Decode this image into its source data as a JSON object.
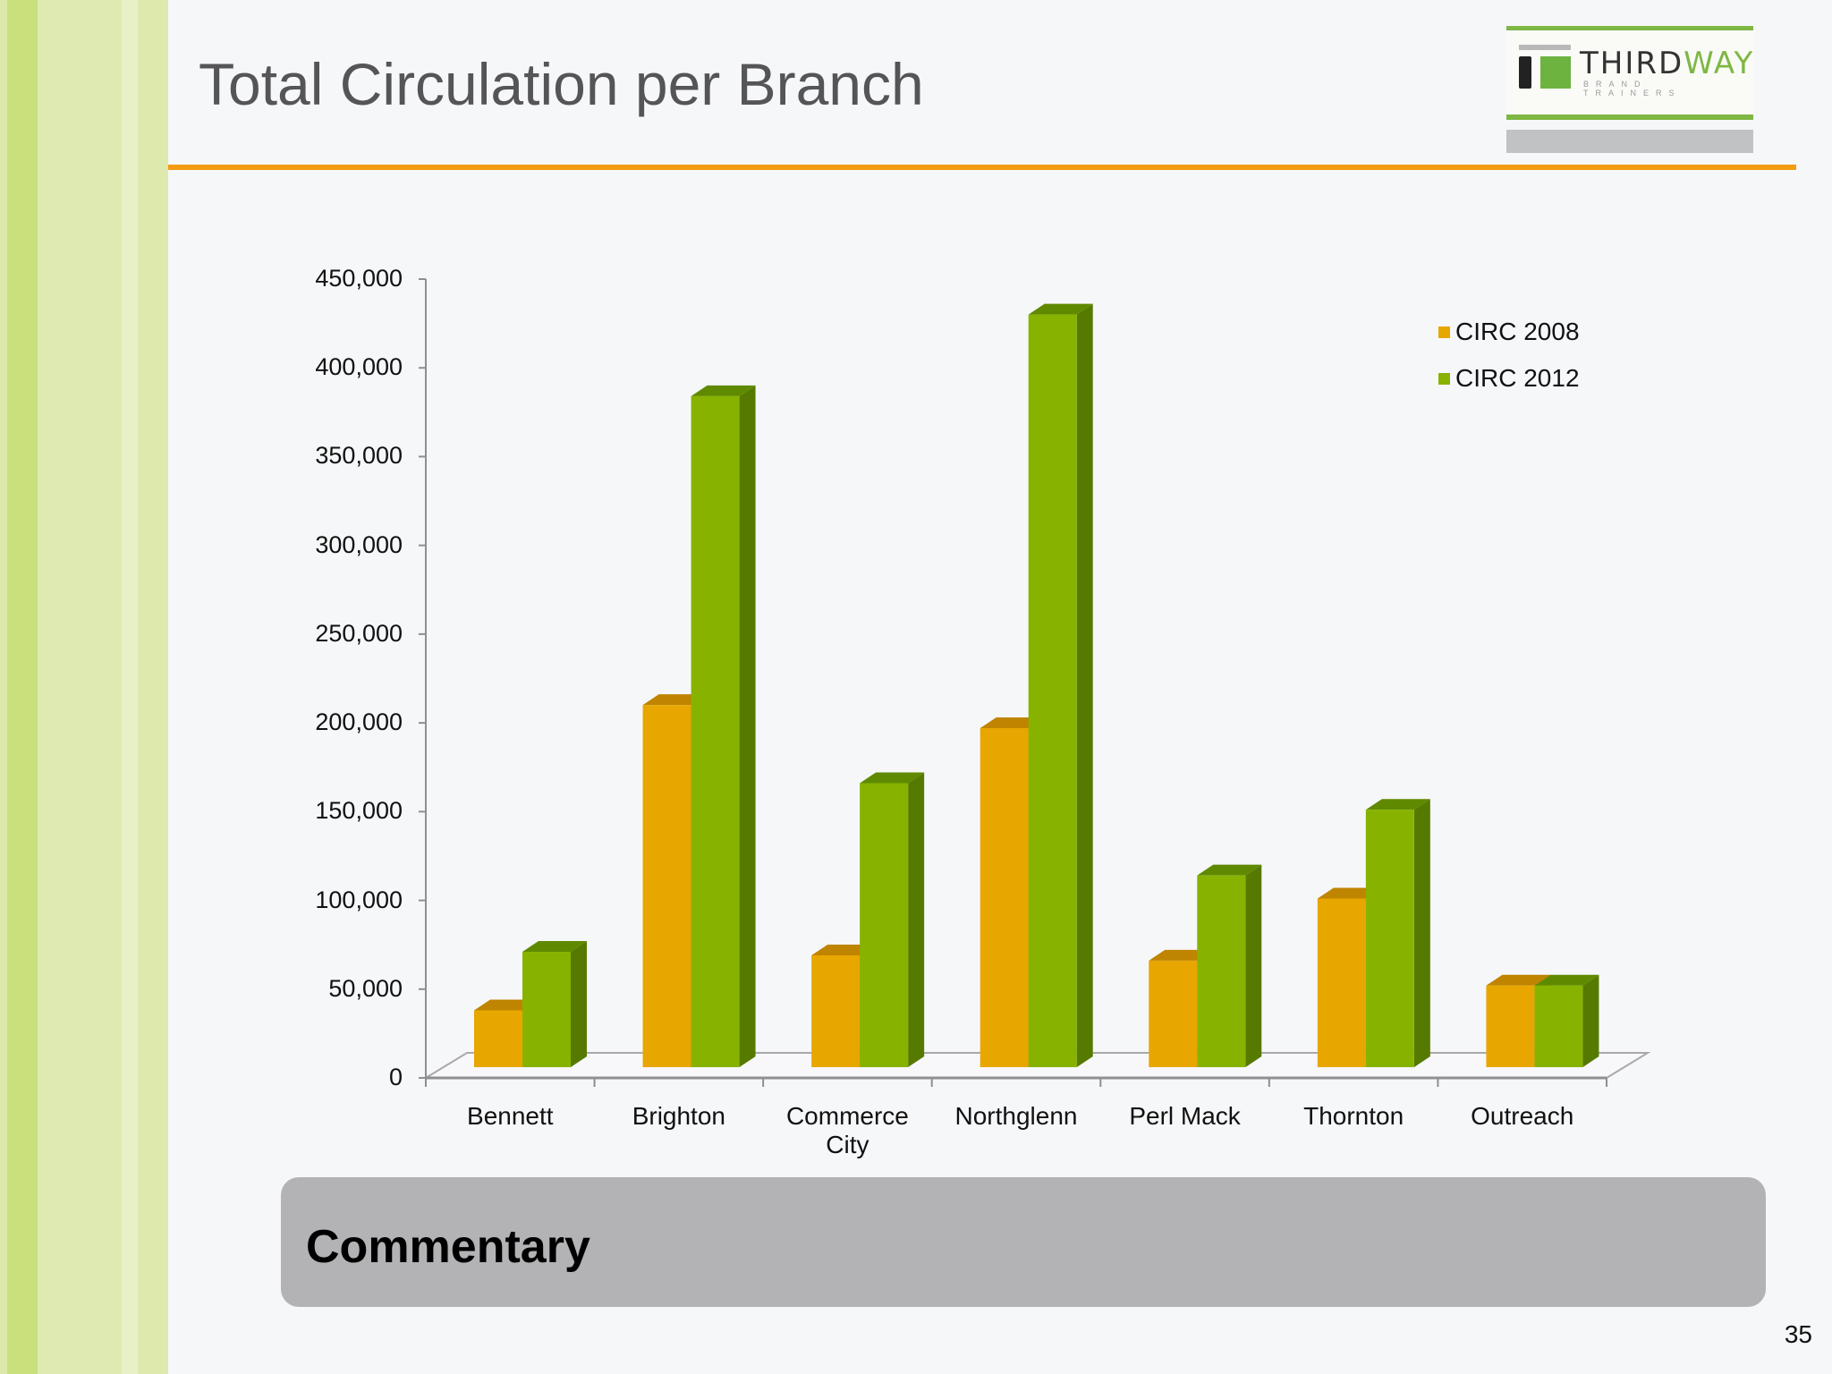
{
  "slide": {
    "title": "Total Circulation per Branch",
    "page_number": "35",
    "commentary_label": "Commentary"
  },
  "logo": {
    "word_main": "THIRD",
    "word_accent": "WAY",
    "tagline": "BRAND TRAINERS"
  },
  "colors": {
    "accent_rule": "#f39c12",
    "series_2008": "#e8a600",
    "series_2012": "#87b300",
    "sidebar_green": "#c9e07c",
    "commentary_bg": "#b3b2b5"
  },
  "chart_data": {
    "type": "bar",
    "style": "3d-clustered-column",
    "title": "",
    "xlabel": "",
    "ylabel": "",
    "categories": [
      "Bennett",
      "Brighton",
      "Commerce City",
      "Northglenn",
      "Perl Mack",
      "Thornton",
      "Outreach"
    ],
    "series": [
      {
        "name": "CIRC 2008",
        "color": "#e8a600",
        "values": [
          32000,
          204000,
          63000,
          191000,
          60000,
          95000,
          46000
        ]
      },
      {
        "name": "CIRC 2012",
        "color": "#87b300",
        "values": [
          65000,
          378000,
          160000,
          424000,
          108000,
          145000,
          46000
        ]
      }
    ],
    "ylim": [
      0,
      450000
    ],
    "yticks": [
      0,
      50000,
      100000,
      150000,
      200000,
      250000,
      300000,
      350000,
      400000,
      450000
    ],
    "ytick_labels": [
      "0",
      "50,000",
      "100,000",
      "150,000",
      "200,000",
      "250,000",
      "300,000",
      "350,000",
      "400,000",
      "450,000"
    ],
    "grid": false,
    "legend_position": "top-right"
  }
}
